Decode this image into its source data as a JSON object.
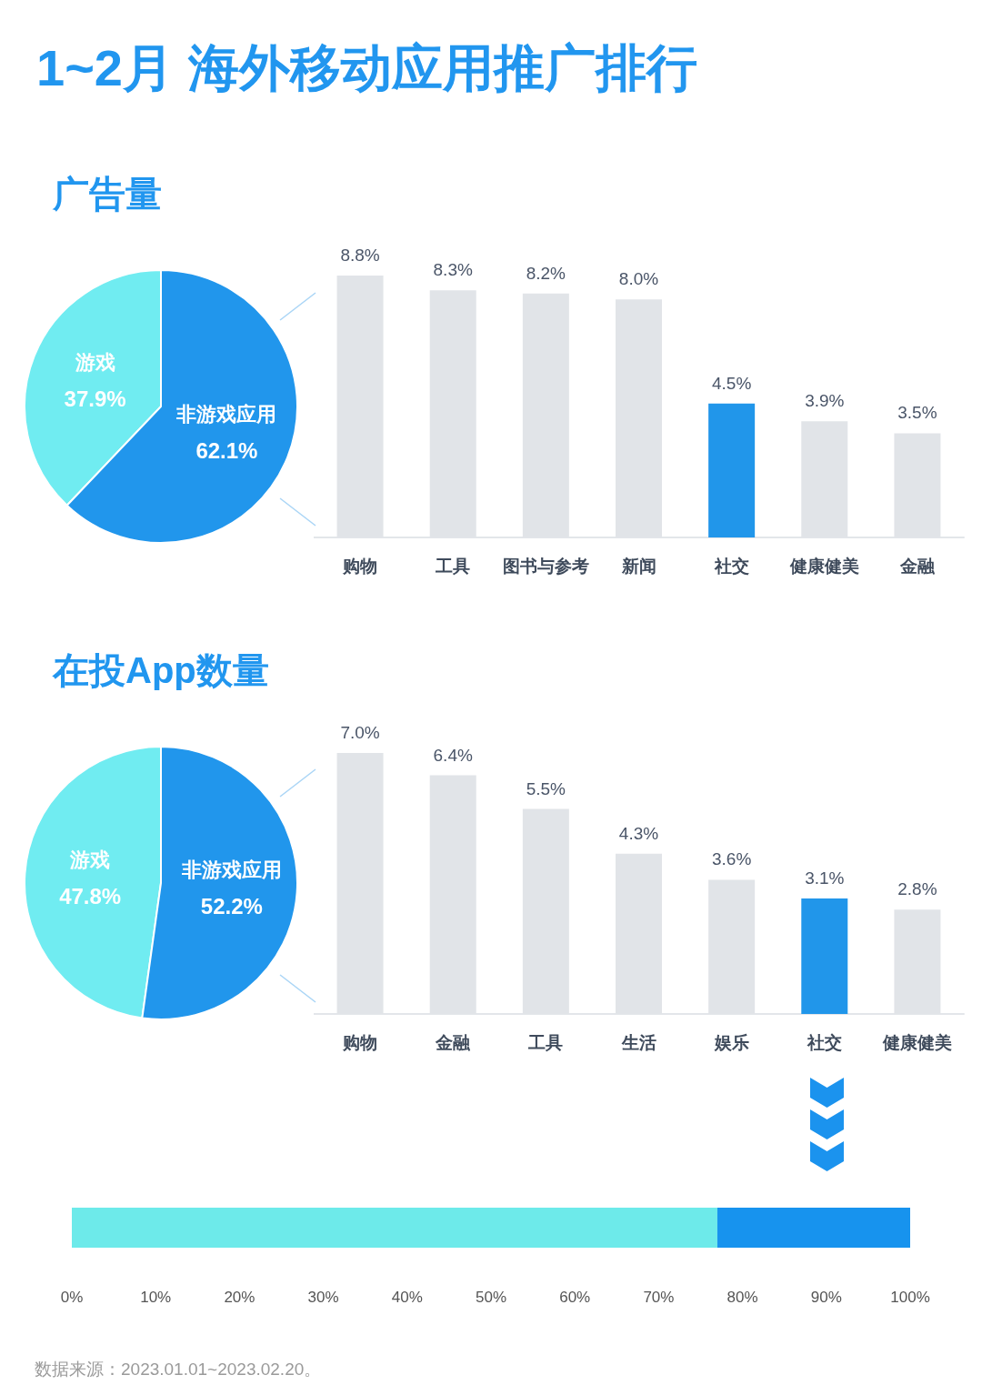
{
  "chart_data": [
    {
      "type": "pie",
      "title": "1~2月 海外移动应用推广排行",
      "subtitle": "广告量",
      "categories": [
        "游戏",
        "非游戏应用"
      ],
      "values": [
        37.9,
        62.1
      ],
      "value_labels": [
        "37.9%",
        "62.1%"
      ],
      "colors": [
        "#70ecf1",
        "#2196ec"
      ]
    },
    {
      "type": "bar",
      "categories": [
        "购物",
        "工具",
        "图书与参考",
        "新闻",
        "社交",
        "健康健美",
        "金融"
      ],
      "values": [
        8.8,
        8.3,
        8.2,
        8.0,
        4.5,
        3.9,
        3.5
      ],
      "value_labels": [
        "8.8%",
        "8.3%",
        "8.2%",
        "8.0%",
        "4.5%",
        "3.9%",
        "3.5%"
      ],
      "colors": [
        "#e1e4e8",
        "#e1e4e8",
        "#e1e4e8",
        "#e1e4e8",
        "#2196ea",
        "#e1e4e8",
        "#e1e4e8"
      ],
      "tick_labels": "x"
    },
    {
      "type": "pie",
      "title": "在投App数量",
      "categories": [
        "游戏",
        "非游戏应用"
      ],
      "values": [
        47.8,
        52.2
      ],
      "value_labels": [
        "47.8%",
        "52.2%"
      ],
      "colors": [
        "#70ecf1",
        "#2196ec"
      ]
    },
    {
      "type": "bar",
      "categories": [
        "购物",
        "金融",
        "工具",
        "生活",
        "娱乐",
        "社交",
        "健康健美"
      ],
      "values": [
        7.0,
        6.4,
        5.5,
        4.3,
        3.6,
        3.1,
        2.8
      ],
      "value_labels": [
        "7.0%",
        "6.4%",
        "5.5%",
        "4.3%",
        "3.6%",
        "3.1%",
        "2.8%"
      ],
      "colors": [
        "#e1e4e8",
        "#e1e4e8",
        "#e1e4e8",
        "#e1e4e8",
        "#e1e4e8",
        "#2196ea",
        "#e1e4e8"
      ],
      "tick_labels": "x"
    },
    {
      "type": "bar",
      "orientation": "horizontal",
      "stacked": true,
      "categories": [
        null
      ],
      "series": [
        {
          "color": "#6deaea",
          "values": [
            77
          ]
        },
        {
          "color": "#1793ee",
          "values": [
            23
          ]
        }
      ],
      "xlim": [
        0,
        100
      ],
      "xticks": [
        {
          "value": 0,
          "label": "0%"
        },
        {
          "value": 10,
          "label": "10%"
        },
        {
          "value": 20,
          "label": "20%"
        },
        {
          "value": 30,
          "label": "30%"
        },
        {
          "value": 40,
          "label": "40%"
        },
        {
          "value": 50,
          "label": "50%"
        },
        {
          "value": 60,
          "label": "60%"
        },
        {
          "value": 70,
          "label": "70%"
        },
        {
          "value": 80,
          "label": "80%"
        },
        {
          "value": 90,
          "label": "90%"
        },
        {
          "value": 100,
          "label": "100%"
        }
      ],
      "tick_labels": "x",
      "annotations": [
        "数据来源：2023.01.01~2023.02.20。"
      ]
    }
  ]
}
